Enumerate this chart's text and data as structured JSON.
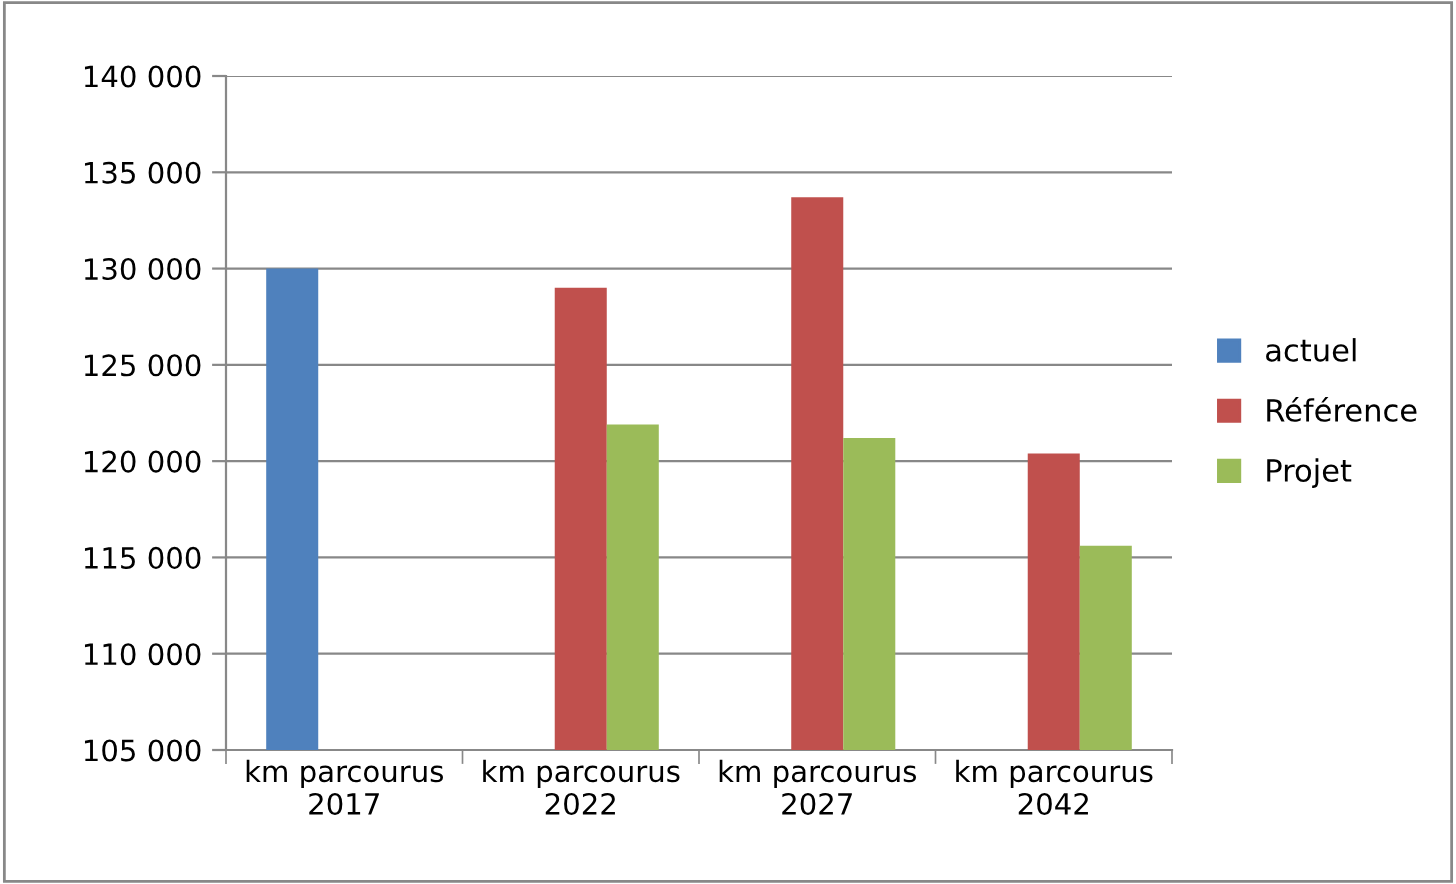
{
  "chart_data": {
    "type": "bar",
    "categories": [
      "km parcourus\n2017",
      "km parcourus\n2022",
      "km parcourus\n2027",
      "km parcourus\n2042"
    ],
    "series": [
      {
        "name": "actuel",
        "color": "#4f81bd",
        "values": [
          130000,
          null,
          null,
          null
        ]
      },
      {
        "name": "Référence",
        "color": "#c0504d",
        "values": [
          null,
          129000,
          133700,
          120400
        ]
      },
      {
        "name": "Projet",
        "color": "#9bbb59",
        "values": [
          null,
          121900,
          121200,
          115600
        ]
      }
    ],
    "ylim": [
      105000,
      140000
    ],
    "yticks": [
      {
        "value": 105000,
        "label": "105 000"
      },
      {
        "value": 110000,
        "label": "110 000"
      },
      {
        "value": 115000,
        "label": "115 000"
      },
      {
        "value": 120000,
        "label": "120 000"
      },
      {
        "value": 125000,
        "label": "125 000"
      },
      {
        "value": 130000,
        "label": "130 000"
      },
      {
        "value": 135000,
        "label": "135 000"
      },
      {
        "value": 140000,
        "label": "140 000"
      }
    ],
    "grid": "y",
    "legend": "right"
  }
}
